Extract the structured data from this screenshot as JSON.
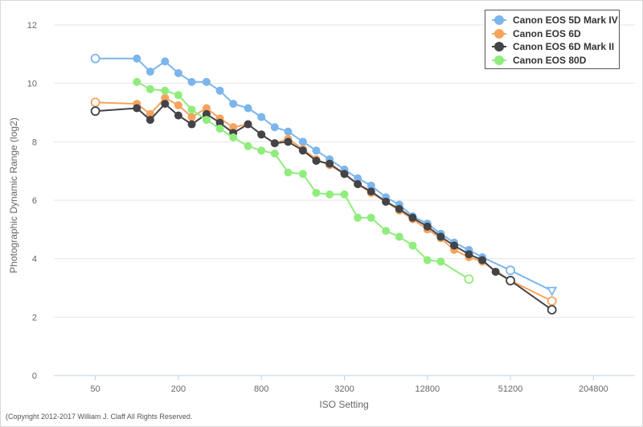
{
  "chart_data": {
    "type": "line",
    "xlabel": "ISO Setting",
    "ylabel": "Photographic Dynamic Range (log2)",
    "xscale": "log2",
    "xticks": [
      50,
      200,
      800,
      3200,
      12800,
      51200,
      204800
    ],
    "xtick_labels": [
      "50",
      "200",
      "800",
      "3200",
      "12800",
      "51200",
      "204800"
    ],
    "xlim": [
      25,
      409600
    ],
    "ylim": [
      0,
      12
    ],
    "yticks": [
      0,
      2,
      4,
      6,
      8,
      10,
      12
    ],
    "grid": "horizontal",
    "legend_position": "top-right",
    "series": [
      {
        "name": "Canon EOS 5D Mark IV",
        "color": "#7cb5ec",
        "x": [
          50,
          100,
          125,
          160,
          200,
          250,
          320,
          400,
          500,
          640,
          800,
          1000,
          1250,
          1600,
          2000,
          2500,
          3200,
          4000,
          5000,
          6400,
          8000,
          10000,
          12800,
          16000,
          20000,
          25600,
          32000,
          51200,
          102400
        ],
        "y": [
          10.85,
          10.85,
          10.4,
          10.75,
          10.35,
          10.05,
          10.05,
          9.75,
          9.3,
          9.15,
          8.85,
          8.5,
          8.35,
          8.0,
          7.7,
          7.4,
          7.05,
          6.75,
          6.5,
          6.1,
          5.85,
          5.45,
          5.2,
          4.85,
          4.55,
          4.3,
          4.05,
          3.6,
          2.9
        ],
        "open_markers_x": [
          50,
          51200,
          102400
        ]
      },
      {
        "name": "Canon EOS 6D",
        "color": "#f7a35c",
        "x": [
          50,
          100,
          125,
          160,
          200,
          250,
          320,
          400,
          500,
          640,
          800,
          1000,
          1250,
          1600,
          2000,
          2500,
          3200,
          4000,
          5000,
          6400,
          8000,
          10000,
          12800,
          16000,
          20000,
          25600,
          32000,
          51200,
          102400
        ],
        "y": [
          9.35,
          9.3,
          8.95,
          9.5,
          9.25,
          8.85,
          9.15,
          8.8,
          8.5,
          8.6,
          8.25,
          7.95,
          8.1,
          7.75,
          7.4,
          7.2,
          6.9,
          6.55,
          6.25,
          5.95,
          5.65,
          5.35,
          5.0,
          4.7,
          4.3,
          4.05,
          3.9,
          3.25,
          2.55
        ],
        "open_markers_x": [
          50,
          51200,
          102400
        ]
      },
      {
        "name": "Canon EOS 6D Mark II",
        "color": "#434348",
        "x": [
          50,
          100,
          125,
          160,
          200,
          250,
          320,
          400,
          500,
          640,
          800,
          1000,
          1250,
          1600,
          2000,
          2500,
          3200,
          4000,
          5000,
          6400,
          8000,
          10000,
          12800,
          16000,
          20000,
          25600,
          32000,
          40000,
          51200,
          102400
        ],
        "y": [
          9.05,
          9.15,
          8.75,
          9.3,
          8.9,
          8.6,
          8.95,
          8.65,
          8.3,
          8.6,
          8.25,
          7.95,
          8.0,
          7.7,
          7.35,
          7.25,
          6.9,
          6.55,
          6.3,
          5.95,
          5.7,
          5.4,
          5.1,
          4.75,
          4.45,
          4.15,
          3.95,
          3.55,
          3.25,
          2.25
        ],
        "open_markers_x": [
          50,
          51200,
          102400
        ]
      },
      {
        "name": "Canon EOS 80D",
        "color": "#90ed7d",
        "x": [
          100,
          125,
          160,
          200,
          250,
          320,
          400,
          500,
          640,
          800,
          1000,
          1250,
          1600,
          2000,
          2500,
          3200,
          4000,
          5000,
          6400,
          8000,
          10000,
          12800,
          16000,
          25600
        ],
        "y": [
          10.05,
          9.8,
          9.75,
          9.6,
          9.1,
          8.75,
          8.45,
          8.15,
          7.85,
          7.7,
          7.6,
          6.95,
          6.9,
          6.25,
          6.2,
          6.2,
          5.4,
          5.4,
          4.95,
          4.75,
          4.45,
          3.95,
          3.9,
          3.3
        ],
        "open_markers_x": [
          25600
        ]
      }
    ]
  },
  "copyright": "(Copyright 2012-2017 William J. Claff All Rights Reserved."
}
